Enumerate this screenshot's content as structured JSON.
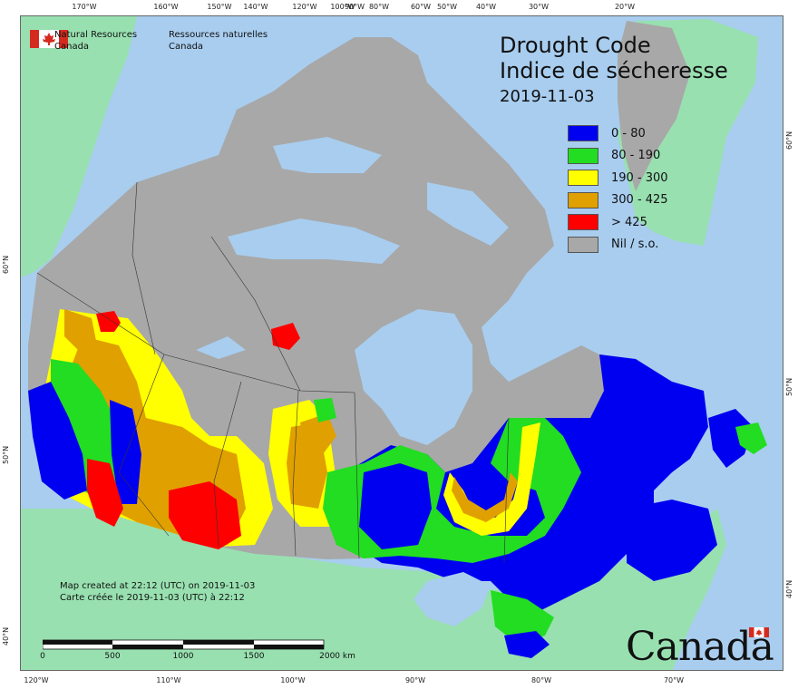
{
  "map": {
    "title_en": "Drought Code",
    "title_fr": "Indice de sécheresse",
    "date": "2019-11-03",
    "organization": {
      "name_en_line1": "Natural Resources",
      "name_en_line2": "Canada",
      "name_fr_line1": "Ressources naturelles",
      "name_fr_line2": "Canada",
      "flag_icon": "canada-flag-icon"
    },
    "legend": [
      {
        "label": "0 - 80",
        "color": "#0000f0"
      },
      {
        "label": "80 - 190",
        "color": "#22dd22"
      },
      {
        "label": "190 - 300",
        "color": "#ffff00"
      },
      {
        "label": "300 - 425",
        "color": "#e0a000"
      },
      {
        "label": "> 425",
        "color": "#ff0000"
      },
      {
        "label": "Nil / s.o.",
        "color": "#a8a8a8"
      }
    ],
    "credit_en": "Map created at 22:12 (UTC) on 2019-11-03",
    "credit_fr": "Carte créée le 2019-11-03 (UTC) à 22:12",
    "scale_bar": {
      "labels": [
        "0",
        "500",
        "1000",
        "1500",
        "2000 km"
      ]
    },
    "wordmark": "Canada",
    "colors": {
      "ocean": "#a8cdef",
      "neighbour_land": "#98e0b0",
      "no_data": "#a8a8a8"
    }
  },
  "graticule": {
    "top": [
      "170°W",
      "160°W",
      "150°W",
      "140°W",
      "120°W",
      "100°W",
      "90°W",
      "80°W",
      "60°W",
      "50°W",
      "40°W",
      "30°W",
      "20°W"
    ],
    "bottom": [
      "120°W",
      "110°W",
      "100°W",
      "90°W",
      "80°W",
      "70°W"
    ],
    "left": [
      "60°N",
      "50°N",
      "40°N"
    ],
    "right": [
      "60°N",
      "50°N",
      "40°N"
    ]
  }
}
